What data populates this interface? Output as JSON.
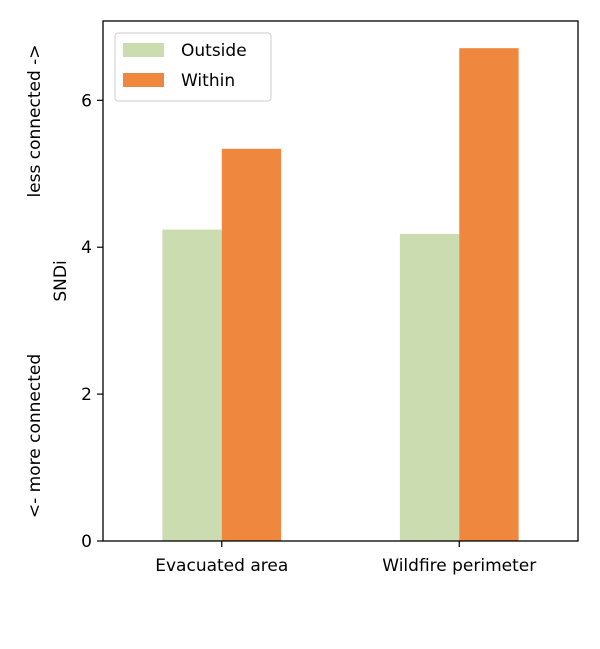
{
  "chart_data": {
    "type": "bar",
    "categories": [
      "Evacuated area",
      "Wildfire perimeter"
    ],
    "series": [
      {
        "name": "Outside",
        "values": [
          4.24,
          4.18
        ],
        "color": "#cadcb0"
      },
      {
        "name": "Within",
        "values": [
          5.34,
          6.71
        ],
        "color": "#ef873f"
      }
    ],
    "title": "",
    "xlabel": "",
    "ylabel": "SNDi",
    "ylabel_upper_note": "less connected ->",
    "ylabel_lower_note": "<- more connected",
    "ylim": [
      0,
      7.08
    ],
    "yticks": [
      0,
      2,
      4,
      6
    ],
    "grid": false,
    "legend_position": "top-left"
  }
}
